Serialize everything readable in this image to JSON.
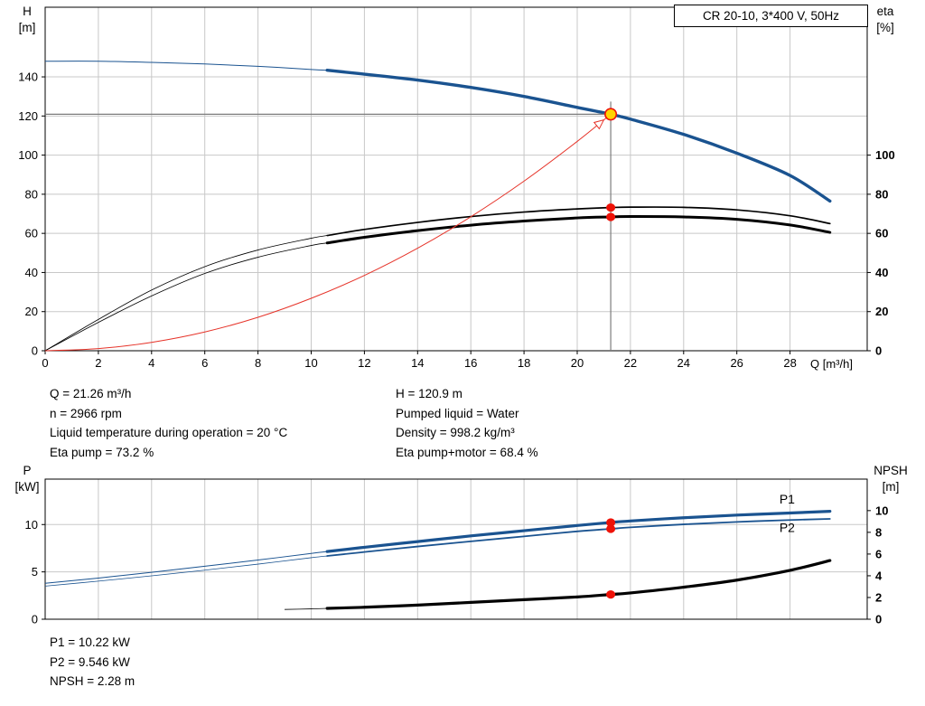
{
  "colors": {
    "curve_blue": "#1a5390",
    "curve_black": "#000000",
    "system_red": "#e63329",
    "dot_red": "#ee1208",
    "duty_fill": "#ffd400",
    "grid": "#c8c8c8",
    "axis": "#000000",
    "crosshair": "#7d7d7d",
    "label_blue": "#1a5390"
  },
  "info_top": {
    "col1": [
      "Q = 21.26 m³/h",
      "n = 2966 rpm",
      "Liquid temperature during operation = 20 °C",
      "Eta pump = 73.2 %"
    ],
    "col2": [
      "H = 120.9 m",
      "Pumped liquid = Water",
      "Density = 998.2 kg/m³",
      "Eta pump+motor = 68.4 %"
    ]
  },
  "info_bottom": [
    "P1 = 10.22 kW",
    "P2 = 9.546 kW",
    "NPSH = 2.28 m"
  ],
  "chart_data": [
    {
      "type": "line",
      "name": "QH and efficiency chart",
      "title": "CR 20-10, 3*400 V, 50Hz",
      "grid": true,
      "corner_left": [
        "H",
        "[m]"
      ],
      "corner_right": [
        "eta",
        "[%]"
      ],
      "x_axis": {
        "label": "Q [m³/h]",
        "min": 0,
        "max": 30.9,
        "ticks": [
          0,
          2,
          4,
          6,
          8,
          10,
          12,
          14,
          16,
          18,
          20,
          22,
          24,
          26,
          28
        ],
        "show_labels": true
      },
      "y_left": {
        "label": "H [m]",
        "min": 0,
        "max": 175.6,
        "ticks": [
          0,
          20,
          40,
          60,
          80,
          100,
          120,
          140
        ]
      },
      "y_right": {
        "label": "eta [%]",
        "min": 0,
        "max": 175.6,
        "ticks": [
          0,
          20,
          40,
          60,
          80,
          100
        ]
      },
      "series": [
        {
          "name": "H-Q curve",
          "axis": "left",
          "color": "#1a5390",
          "w_thin": 1,
          "w_thick": 3.4,
          "split": 10.6,
          "points": [
            [
              0,
              148
            ],
            [
              2,
              148
            ],
            [
              4,
              147.4
            ],
            [
              6,
              146.6
            ],
            [
              8,
              145.4
            ],
            [
              10,
              143.8
            ],
            [
              10.6,
              143.4
            ],
            [
              12,
              141.4
            ],
            [
              14,
              138.4
            ],
            [
              16,
              134.6
            ],
            [
              18,
              130
            ],
            [
              20,
              124.4
            ],
            [
              21.26,
              120.9
            ],
            [
              22,
              118.4
            ],
            [
              24,
              110.6
            ],
            [
              26,
              101
            ],
            [
              28,
              89.6
            ],
            [
              29.5,
              76.5
            ]
          ]
        },
        {
          "name": "Eta pump",
          "axis": "right",
          "color": "#000000",
          "w_thin": 0.8,
          "w_thick": 1.7,
          "split": 10.6,
          "points": [
            [
              0,
              0
            ],
            [
              2,
              16
            ],
            [
              4,
              31
            ],
            [
              6,
              43
            ],
            [
              8,
              51.5
            ],
            [
              10,
              57.5
            ],
            [
              10.6,
              58.9
            ],
            [
              12,
              62
            ],
            [
              14,
              65.6
            ],
            [
              16,
              68.6
            ],
            [
              18,
              70.9
            ],
            [
              20,
              72.5
            ],
            [
              21.26,
              73.2
            ],
            [
              22,
              73.4
            ],
            [
              24,
              73.3
            ],
            [
              26,
              72
            ],
            [
              28,
              69
            ],
            [
              29.5,
              65
            ]
          ]
        },
        {
          "name": "Eta pump+motor",
          "axis": "right",
          "color": "#000000",
          "w_thin": 0.8,
          "w_thick": 3,
          "split": 10.6,
          "points": [
            [
              0,
              0
            ],
            [
              2,
              14.5
            ],
            [
              4,
              28
            ],
            [
              6,
              39.5
            ],
            [
              8,
              47.8
            ],
            [
              10,
              53.8
            ],
            [
              10.6,
              55.1
            ],
            [
              12,
              58
            ],
            [
              14,
              61.4
            ],
            [
              16,
              64.2
            ],
            [
              18,
              66.3
            ],
            [
              20,
              67.9
            ],
            [
              21.26,
              68.4
            ],
            [
              22,
              68.6
            ],
            [
              24,
              68.4
            ],
            [
              26,
              67.2
            ],
            [
              28,
              64.3
            ],
            [
              29.5,
              60.5
            ]
          ]
        },
        {
          "name": "System curve",
          "axis": "left",
          "color": "#e63329",
          "w_thin": 1,
          "w_thick": 1,
          "split": null,
          "arrow_end": true,
          "points": [
            [
              0,
              0
            ],
            [
              2,
              1.1
            ],
            [
              4,
              4.3
            ],
            [
              6,
              9.6
            ],
            [
              8,
              17.1
            ],
            [
              10,
              26.8
            ],
            [
              12,
              38.5
            ],
            [
              14,
              52.4
            ],
            [
              16,
              68.5
            ],
            [
              18,
              86.7
            ],
            [
              20,
              107
            ],
            [
              21.26,
              120.9
            ]
          ]
        }
      ],
      "crosshair": {
        "x": 21.26,
        "y": 120.9
      },
      "markers": [
        {
          "type": "dot",
          "x": 21.26,
          "value": 73.2,
          "axis": "right"
        },
        {
          "type": "dot",
          "x": 21.26,
          "value": 68.4,
          "axis": "right"
        },
        {
          "type": "duty",
          "x": 21.26,
          "value": 120.9,
          "axis": "left"
        }
      ]
    },
    {
      "type": "line",
      "name": "Power and NPSH chart",
      "grid": true,
      "corner_left": [
        "P",
        "[kW]"
      ],
      "corner_right": [
        "NPSH",
        "[m]"
      ],
      "x_axis": {
        "label": "",
        "min": 0,
        "max": 30.9,
        "ticks": [
          0,
          2,
          4,
          6,
          8,
          10,
          12,
          14,
          16,
          18,
          20,
          22,
          24,
          26,
          28
        ],
        "show_labels": false
      },
      "y_left": {
        "label": "P [kW]",
        "min": 0,
        "max": 14.8,
        "ticks": [
          0,
          5,
          10
        ]
      },
      "y_right": {
        "label": "NPSH [m]",
        "min": 0,
        "max": 12.9,
        "ticks": [
          0,
          2,
          4,
          6,
          8,
          10
        ]
      },
      "series": [
        {
          "name": "P1",
          "label": "P1",
          "label_q": 27.6,
          "label_dy": -11,
          "axis": "left",
          "color": "#1a5390",
          "w_thin": 1,
          "w_thick": 3.2,
          "split": 10.6,
          "points": [
            [
              0,
              3.8
            ],
            [
              2,
              4.35
            ],
            [
              4,
              4.95
            ],
            [
              6,
              5.6
            ],
            [
              8,
              6.25
            ],
            [
              10,
              6.95
            ],
            [
              10.6,
              7.15
            ],
            [
              12,
              7.6
            ],
            [
              14,
              8.2
            ],
            [
              16,
              8.8
            ],
            [
              18,
              9.35
            ],
            [
              20,
              9.9
            ],
            [
              21.26,
              10.22
            ],
            [
              22,
              10.38
            ],
            [
              24,
              10.72
            ],
            [
              26,
              11
            ],
            [
              28,
              11.22
            ],
            [
              29.5,
              11.4
            ]
          ]
        },
        {
          "name": "P2",
          "label": "P2",
          "label_q": 27.6,
          "label_dy": 13,
          "axis": "left",
          "color": "#1a5390",
          "w_thin": 0.8,
          "w_thick": 1.8,
          "split": 10.6,
          "points": [
            [
              0,
              3.5
            ],
            [
              2,
              4.02
            ],
            [
              4,
              4.58
            ],
            [
              6,
              5.18
            ],
            [
              8,
              5.82
            ],
            [
              10,
              6.5
            ],
            [
              10.6,
              6.68
            ],
            [
              12,
              7.1
            ],
            [
              14,
              7.68
            ],
            [
              16,
              8.22
            ],
            [
              18,
              8.75
            ],
            [
              20,
              9.28
            ],
            [
              21.26,
              9.546
            ],
            [
              22,
              9.7
            ],
            [
              24,
              10.02
            ],
            [
              26,
              10.28
            ],
            [
              28,
              10.48
            ],
            [
              29.5,
              10.6
            ]
          ]
        },
        {
          "name": "NPSH",
          "axis": "right",
          "color": "#000000",
          "w_thin": 0.8,
          "w_thick": 3.2,
          "split": 10.6,
          "points": [
            [
              9,
              0.9
            ],
            [
              10,
              0.95
            ],
            [
              10.6,
              1.0
            ],
            [
              12,
              1.1
            ],
            [
              14,
              1.3
            ],
            [
              16,
              1.55
            ],
            [
              18,
              1.8
            ],
            [
              20,
              2.05
            ],
            [
              21.26,
              2.28
            ],
            [
              22,
              2.42
            ],
            [
              24,
              2.95
            ],
            [
              26,
              3.6
            ],
            [
              28,
              4.5
            ],
            [
              29.5,
              5.4
            ]
          ]
        }
      ],
      "markers": [
        {
          "type": "dot",
          "x": 21.26,
          "value": 10.22,
          "axis": "left"
        },
        {
          "type": "dot",
          "x": 21.26,
          "value": 9.546,
          "axis": "left"
        },
        {
          "type": "dot",
          "x": 21.26,
          "value": 2.28,
          "axis": "right"
        }
      ]
    }
  ]
}
